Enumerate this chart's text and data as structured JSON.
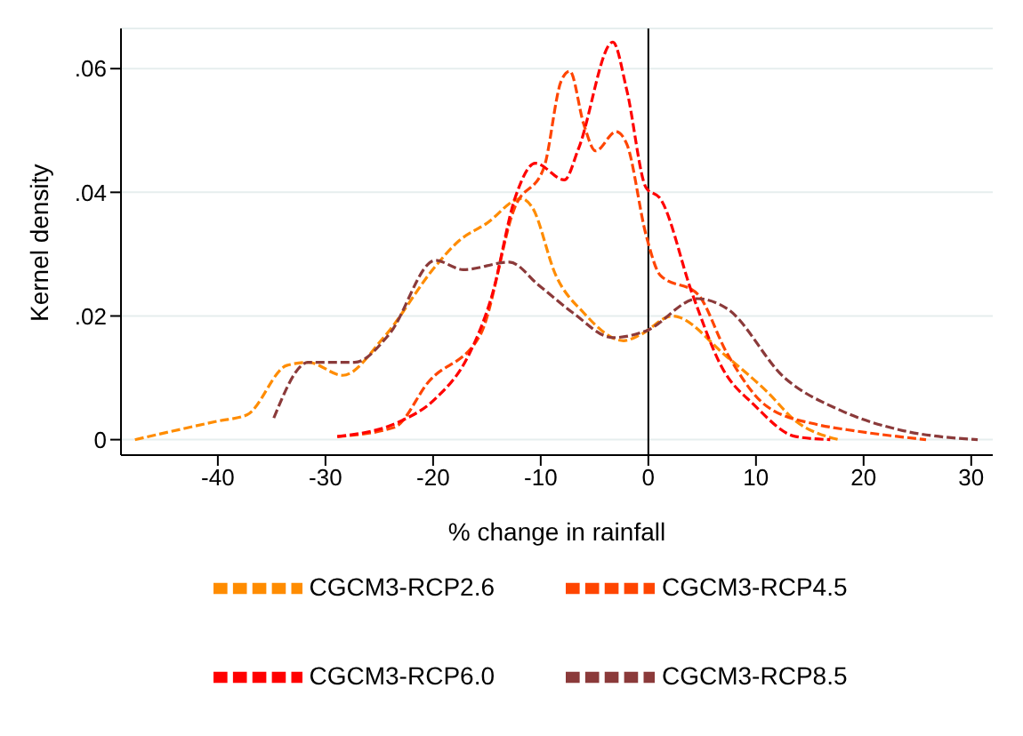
{
  "chart_data": {
    "type": "line",
    "xlabel": "% change in rainfall",
    "ylabel": "Kernel density",
    "xlim": [
      -49,
      32
    ],
    "xticks": [
      -40,
      -30,
      -20,
      -10,
      0,
      10,
      20,
      30
    ],
    "ylim": [
      -0.0025,
      0.0665
    ],
    "yticks": [
      0,
      {
        "value": 0.02,
        "label": ".02"
      },
      {
        "value": 0.04,
        "label": ".04"
      },
      {
        "value": 0.06,
        "label": ".06"
      }
    ],
    "grid": "y",
    "legend": "bottom",
    "line_style": "dashed",
    "marker": "none",
    "ref_lines": [
      {
        "axis": "x",
        "value": 0,
        "color": "#000000",
        "line_style": "solid"
      }
    ],
    "series": [
      {
        "name": "CGCM3-RCP2.6",
        "color": "#ff8c00",
        "x": [
          -47.7,
          -40,
          -37.3,
          -33.6,
          -31.6,
          -28.4,
          -24.6,
          -19.8,
          -17.7,
          -15,
          -11.8,
          -10.8,
          -8.6,
          -6,
          -2.3,
          -0.7,
          2.2,
          7.3,
          11,
          13.7,
          17.7
        ],
        "values": [
          0,
          0.003,
          0.004,
          0.012,
          0.0125,
          0.0104,
          0.0165,
          0.028,
          0.032,
          0.035,
          0.039,
          0.0376,
          0.0266,
          0.0205,
          0.016,
          0.017,
          0.02,
          0.0134,
          0.0078,
          0.003,
          0
        ]
      },
      {
        "name": "CGCM3-RCP4.5",
        "color": "#ff4500",
        "x": [
          -28.9,
          -23.6,
          -20.4,
          -15.6,
          -12.4,
          -9.7,
          -8.1,
          -7.3,
          -6,
          -4.9,
          -3,
          -2,
          -0.2,
          1.1,
          4.6,
          7.3,
          11,
          15.8,
          18.5,
          25.8
        ],
        "values": [
          0.0005,
          0.002,
          0.0094,
          0.017,
          0.0376,
          0.044,
          0.058,
          0.0596,
          0.051,
          0.0467,
          0.0498,
          0.0478,
          0.033,
          0.0266,
          0.0235,
          0.014,
          0.0054,
          0.0024,
          0.0016,
          0
        ]
      },
      {
        "name": "CGCM3-RCP6.0",
        "color": "#ff0000",
        "x": [
          -28.9,
          -23,
          -19.8,
          -16.6,
          -14.5,
          -12.4,
          -10.5,
          -7.8,
          -6.5,
          -3.3,
          -2,
          -0.2,
          1.1,
          4.1,
          6.8,
          9.9,
          13.7,
          16.9
        ],
        "values": [
          0.0005,
          0.003,
          0.0066,
          0.014,
          0.0235,
          0.039,
          0.0447,
          0.042,
          0.047,
          0.0643,
          0.0565,
          0.0407,
          0.039,
          0.0235,
          0.0118,
          0.0055,
          0.0005,
          0
        ]
      },
      {
        "name": "CGCM3-RCP8.5",
        "color": "#8b3a3a",
        "x": [
          -34.8,
          -31.6,
          -27.3,
          -24.1,
          -19.8,
          -17.2,
          -12.9,
          -10.2,
          -7,
          -3.3,
          -0.2,
          4.6,
          7.3,
          12.6,
          17.9,
          23.3,
          30.6
        ],
        "values": [
          0.0035,
          0.0125,
          0.0125,
          0.017,
          0.029,
          0.0275,
          0.0287,
          0.025,
          0.0205,
          0.0165,
          0.0176,
          0.0228,
          0.0212,
          0.0101,
          0.0047,
          0.0016,
          0
        ]
      }
    ]
  }
}
